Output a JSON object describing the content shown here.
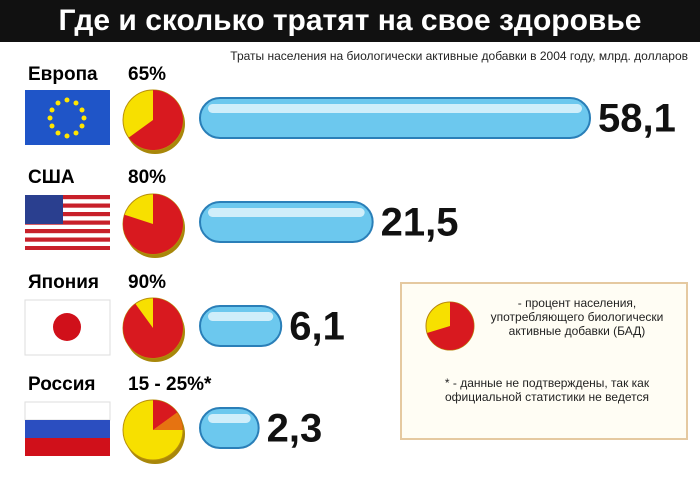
{
  "chart_data": {
    "type": "bar",
    "title": "Где и сколько тратят на свое здоровье",
    "subtitle": "Траты населения на биологически активные добавки в 2004 году, млрд. долларов",
    "categories": [
      "Европа",
      "США",
      "Япония",
      "Россия"
    ],
    "values": [
      58.1,
      21.5,
      6.1,
      2.3
    ],
    "value_labels": [
      "58,1",
      "21,5",
      "6,1",
      "2,3"
    ],
    "color": "#6cc8ee",
    "shares": [
      {
        "value": 65,
        "label": "65%"
      },
      {
        "value": 80,
        "label": "80%"
      },
      {
        "value": 90,
        "label": "90%"
      },
      {
        "value": [
          15,
          25
        ],
        "label": "15 - 25%*"
      }
    ],
    "share_color": "#d8191f",
    "rest_color": "#f7e000",
    "legend": {
      "share": "- процент населения, употребляющего биологически активные добавки (БАД)",
      "note": "* - данные не подтверждены, так как официальной статистики не ведется"
    }
  }
}
